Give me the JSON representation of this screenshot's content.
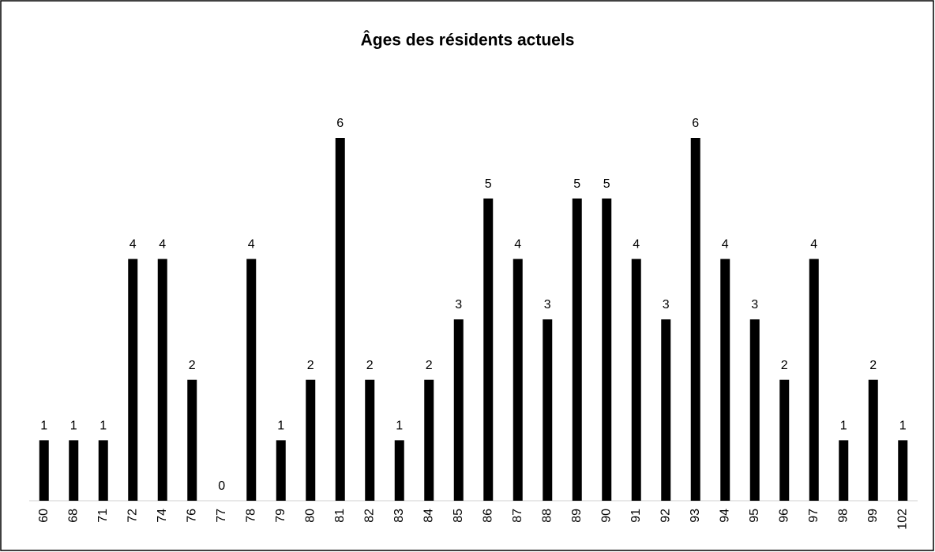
{
  "chart_data": {
    "type": "bar",
    "title": "Âges des résidents actuels",
    "categories": [
      "60",
      "68",
      "71",
      "72",
      "74",
      "76",
      "77",
      "78",
      "79",
      "80",
      "81",
      "82",
      "83",
      "84",
      "85",
      "86",
      "87",
      "88",
      "89",
      "90",
      "91",
      "92",
      "93",
      "94",
      "95",
      "96",
      "97",
      "98",
      "99",
      "102"
    ],
    "values": [
      1,
      1,
      1,
      4,
      4,
      2,
      0,
      4,
      1,
      2,
      6,
      2,
      1,
      2,
      3,
      5,
      4,
      3,
      5,
      5,
      4,
      3,
      6,
      4,
      3,
      2,
      4,
      1,
      2,
      1
    ],
    "color": "#000000"
  }
}
